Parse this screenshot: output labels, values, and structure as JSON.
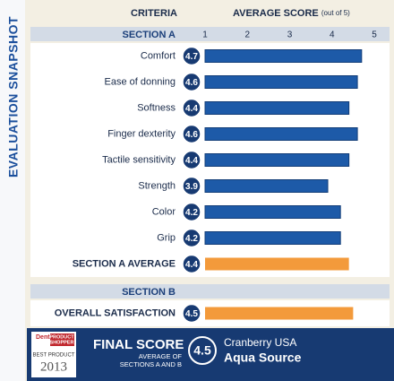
{
  "title": "EVALUATION SNAPSHOT",
  "chart_data": {
    "type": "bar",
    "orientation": "horizontal",
    "category_header": "CRITERIA",
    "value_header": "AVERAGE SCORE",
    "value_header_note": "(out of 5)",
    "xlim": [
      1,
      5
    ],
    "xticks": [
      1,
      2,
      3,
      4,
      5
    ],
    "sections": [
      {
        "name": "SECTION A",
        "color": "#1d5aa8",
        "categories": [
          "Comfort",
          "Ease of donning",
          "Softness",
          "Finger dexterity",
          "Tactile sensitivity",
          "Strength",
          "Color",
          "Grip"
        ],
        "values": [
          4.7,
          4.6,
          4.4,
          4.6,
          4.4,
          3.9,
          4.2,
          4.2
        ],
        "summary": {
          "name": "SECTION A AVERAGE",
          "value": 4.4,
          "color": "#f39a3b"
        }
      },
      {
        "name": "SECTION B",
        "color": "#f39a3b",
        "categories": [
          "OVERALL SATISFACTION"
        ],
        "values": [
          4.5
        ]
      }
    ]
  },
  "footer": {
    "logo_lines": [
      "Dental",
      "PRODUCT",
      "SHOPPER",
      "BEST PRODUCT",
      "2013"
    ],
    "final_score_label": "FINAL SCORE",
    "final_score_note": [
      "AVERAGE OF",
      "SECTIONS A AND B"
    ],
    "final_score": 4.5,
    "brand": "Cranberry USA",
    "product": "Aqua Source"
  }
}
